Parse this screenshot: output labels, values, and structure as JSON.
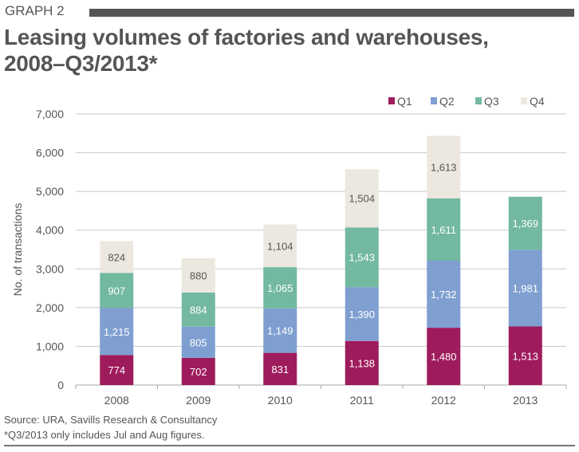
{
  "header": {
    "graph_label": "GRAPH 2",
    "title_line1": "Leasing volumes of factories and warehouses,",
    "title_line2": "2008–Q3/2013*"
  },
  "footer": {
    "source": "Source: URA, Savills Research & Consultancy",
    "note": "*Q3/2013 only includes Jul and Aug figures."
  },
  "chart_data": {
    "type": "bar",
    "stacked": true,
    "categories": [
      "2008",
      "2009",
      "2010",
      "2011",
      "2012",
      "2013"
    ],
    "series": [
      {
        "name": "Q1",
        "color": "#9e1b5c",
        "values": [
          774,
          702,
          831,
          1138,
          1480,
          1513
        ]
      },
      {
        "name": "Q2",
        "color": "#7f9fd1",
        "values": [
          1215,
          805,
          1149,
          1390,
          1732,
          1981
        ]
      },
      {
        "name": "Q3",
        "color": "#72b9a0",
        "values": [
          907,
          884,
          1065,
          1543,
          1611,
          1369
        ]
      },
      {
        "name": "Q4",
        "color": "#ece8df",
        "values": [
          824,
          880,
          1104,
          1504,
          1613,
          null
        ]
      }
    ],
    "ylabel": "No. of transactions",
    "ylim": [
      0,
      7000
    ],
    "yticks": [
      0,
      1000,
      2000,
      3000,
      4000,
      5000,
      6000,
      7000
    ],
    "ytick_labels": [
      "0",
      "1,000",
      "2,000",
      "3,000",
      "4,000",
      "5,000",
      "6,000",
      "7,000"
    ],
    "grid": true,
    "legend": "top-right"
  }
}
